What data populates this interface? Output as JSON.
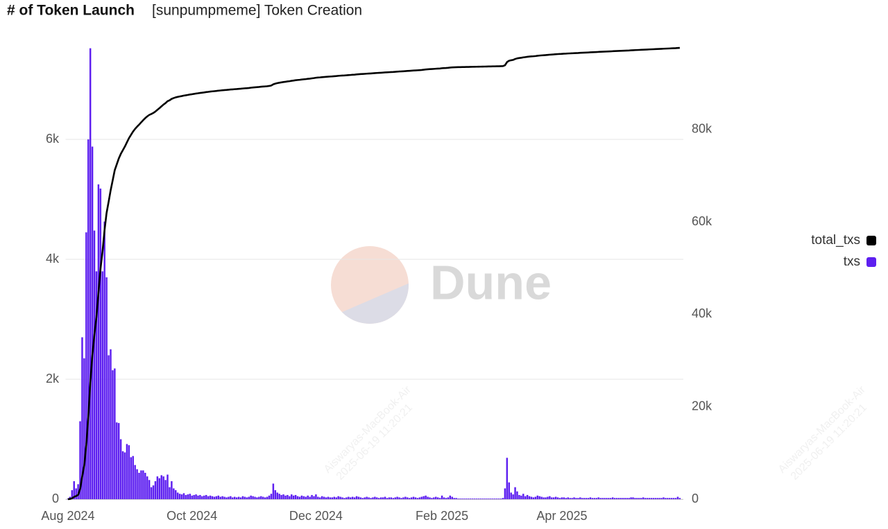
{
  "chart_data": {
    "type": "bar",
    "title": "# of Token Launch",
    "subtitle": "[sunpumpmeme] Token Creation",
    "watermark": "Dune",
    "watermark_user": "Aiswaryas-MacBook-Air",
    "watermark_time": "2025-06-19 11:20:21",
    "legend": "right",
    "grid": true,
    "categories": [
      "Aug 2024",
      null,
      null,
      null,
      null,
      null,
      null,
      null,
      null,
      null,
      null,
      null,
      null,
      null,
      null,
      null,
      null,
      null,
      null,
      null,
      null,
      null,
      null,
      null,
      null,
      null,
      null,
      null,
      null,
      null,
      null,
      null,
      null,
      null,
      null,
      null,
      null,
      null,
      null,
      null,
      null,
      null,
      null,
      null,
      null,
      null,
      null,
      null,
      null,
      null,
      null,
      null,
      null,
      null,
      null,
      null,
      null,
      null,
      null,
      null,
      null,
      "Oct 2024",
      null,
      null,
      null,
      null,
      null,
      null,
      null,
      null,
      null,
      null,
      null,
      null,
      null,
      null,
      null,
      null,
      null,
      null,
      null,
      null,
      null,
      null,
      null,
      null,
      null,
      null,
      null,
      null,
      null,
      null,
      null,
      null,
      null,
      null,
      null,
      null,
      null,
      null,
      null,
      null,
      null,
      null,
      null,
      null,
      null,
      null,
      null,
      null,
      null,
      null,
      null,
      null,
      null,
      null,
      null,
      null,
      null,
      null,
      null,
      null,
      "Dec 2024",
      null,
      null,
      null,
      null,
      null,
      null,
      null,
      null,
      null,
      null,
      null,
      null,
      null,
      null,
      null,
      null,
      null,
      null,
      null,
      null,
      null,
      null,
      null,
      null,
      null,
      null,
      null,
      null,
      null,
      null,
      null,
      null,
      null,
      null,
      null,
      null,
      null,
      null,
      null,
      null,
      null,
      null,
      null,
      null,
      null,
      null,
      null,
      null,
      null,
      null,
      null,
      null,
      null,
      null,
      null,
      null,
      null,
      null,
      null,
      null,
      null,
      "Feb 2025",
      null,
      null,
      null,
      null,
      null,
      null,
      null,
      null,
      null,
      null,
      null,
      null,
      null,
      null,
      null,
      null,
      null,
      null,
      null,
      null,
      null,
      null,
      null,
      null,
      null,
      null,
      null,
      null,
      null,
      null,
      null,
      null,
      null,
      null,
      null,
      null,
      null,
      null,
      null,
      null,
      null,
      null,
      null,
      null,
      null,
      null,
      null,
      null,
      null,
      null,
      null,
      null,
      null,
      null,
      null,
      null,
      null,
      null,
      "Apr 2025",
      null,
      null,
      null,
      null,
      null,
      null,
      null,
      null,
      null,
      null,
      null,
      null,
      null,
      null,
      null,
      null,
      null,
      null,
      null,
      null,
      null,
      null,
      null,
      null,
      null,
      null,
      null,
      null,
      null,
      null,
      null,
      null,
      null,
      null,
      null,
      null,
      null,
      null,
      null,
      null,
      null,
      null,
      null,
      null,
      null,
      null,
      null,
      null,
      null,
      null,
      null,
      null,
      null,
      null,
      null,
      null,
      null,
      null
    ],
    "ylim": [
      0,
      7550
    ],
    "yticks": [
      0,
      {
        "value": 2000,
        "label": "2k"
      },
      {
        "value": 4000,
        "label": "4k"
      },
      {
        "value": 6000,
        "label": "6k"
      }
    ],
    "y2lim": [
      0,
      98000
    ],
    "y2ticks": [
      0,
      {
        "value": 20000,
        "label": "20k"
      },
      {
        "value": 40000,
        "label": "40k"
      },
      {
        "value": 60000,
        "label": "60k"
      },
      {
        "value": 80000,
        "label": "80k"
      }
    ],
    "series": [
      {
        "name": "total_txs",
        "type": "line",
        "axis": "y2",
        "color": "#000000",
        "values": [
          10,
          50,
          200,
          500,
          680,
          930,
          2230,
          4930,
          7280,
          11730,
          17730,
          25250,
          31130,
          35610,
          39410,
          44660,
          49840,
          53640,
          58270,
          61970,
          64370,
          66870,
          69020,
          71200,
          72480,
          73750,
          74750,
          75550,
          76330,
          77250,
          78150,
          78850,
          79570,
          80140,
          80640,
          81080,
          81560,
          82040,
          82480,
          82860,
          83180,
          83380,
          83610,
          83910,
          84290,
          84640,
          85040,
          85420,
          85740,
          86150,
          86350,
          86650,
          86830,
          86980,
          87090,
          87180,
          87260,
          87360,
          87430,
          87510,
          87600,
          87660,
          87730,
          87810,
          87870,
          87940,
          87990,
          88050,
          88120,
          88170,
          88230,
          88280,
          88320,
          88370,
          88430,
          88470,
          88520,
          88560,
          88590,
          88630,
          88680,
          88710,
          88750,
          88780,
          88820,
          88850,
          88900,
          88940,
          88970,
          89010,
          89070,
          89120,
          89160,
          89190,
          89230,
          89280,
          89320,
          89350,
          89390,
          89450,
          89540,
          89800,
          89950,
          90060,
          90150,
          90220,
          90300,
          90360,
          90430,
          90480,
          90560,
          90620,
          90690,
          90740,
          90780,
          90840,
          90890,
          90930,
          90990,
          91030,
          91100,
          91150,
          91230,
          91270,
          91300,
          91350,
          91390,
          91420,
          91460,
          91490,
          91520,
          91560,
          91590,
          91640,
          91680,
          91710,
          91730,
          91760,
          91800,
          91830,
          91870,
          91900,
          91950,
          91990,
          92020,
          92040,
          92070,
          92110,
          92140,
          92160,
          92190,
          92230,
          92260,
          92280,
          92310,
          92340,
          92380,
          92400,
          92430,
          92460,
          92480,
          92510,
          92550,
          92580,
          92600,
          92630,
          92670,
          92700,
          92720,
          92750,
          92790,
          92820,
          92840,
          92870,
          92910,
          92960,
          93020,
          93060,
          93090,
          93110,
          93140,
          93180,
          93210,
          93230,
          93290,
          93320,
          93340,
          93370,
          93430,
          93470,
          93490,
          93510,
          93520,
          93530,
          93540,
          93550,
          93560,
          93570,
          93580,
          93590,
          93600,
          93610,
          93620,
          93630,
          93640,
          93650,
          93660,
          93670,
          93680,
          93690,
          93700,
          93710,
          93720,
          93730,
          93750,
          93930,
          94620,
          94900,
          95010,
          95090,
          95290,
          95420,
          95490,
          95550,
          95640,
          95690,
          95760,
          95810,
          95850,
          95880,
          95920,
          95980,
          96030,
          96070,
          96100,
          96130,
          96170,
          96220,
          96250,
          96280,
          96320,
          96350,
          96370,
          96400,
          96430,
          96450,
          96480,
          96500,
          96520,
          96550,
          96570,
          96590,
          96620,
          96640,
          96660,
          96680,
          96700,
          96730,
          96750,
          96770,
          96790,
          96820,
          96840,
          96860,
          96880,
          96900,
          96920,
          96940,
          96970,
          96990,
          97010,
          97030,
          97050,
          97070,
          97090,
          97110,
          97130,
          97160,
          97190,
          97210,
          97230,
          97250,
          97270,
          97300,
          97320,
          97340,
          97360,
          97380,
          97400,
          97420,
          97440,
          97460,
          97480,
          97510,
          97530,
          97550,
          97570,
          97590,
          97610,
          97630,
          97670,
          97690
        ]
      },
      {
        "name": "txs",
        "type": "bar",
        "color": "#5d1ff0",
        "values": [
          10,
          40,
          150,
          300,
          180,
          250,
          1300,
          2700,
          2350,
          4450,
          6000,
          7520,
          5880,
          4480,
          3800,
          5250,
          5180,
          3800,
          4630,
          3700,
          2400,
          2500,
          2150,
          2180,
          1280,
          1270,
          1000,
          800,
          780,
          920,
          900,
          700,
          720,
          570,
          500,
          440,
          480,
          480,
          440,
          380,
          320,
          200,
          230,
          300,
          380,
          350,
          400,
          380,
          320,
          410,
          200,
          300,
          180,
          150,
          110,
          90,
          80,
          100,
          70,
          80,
          90,
          60,
          70,
          80,
          60,
          70,
          50,
          60,
          70,
          50,
          60,
          50,
          40,
          50,
          60,
          40,
          50,
          40,
          30,
          40,
          50,
          30,
          40,
          30,
          40,
          30,
          50,
          40,
          30,
          40,
          60,
          50,
          40,
          30,
          40,
          50,
          40,
          30,
          40,
          60,
          90,
          260,
          150,
          110,
          90,
          70,
          80,
          60,
          70,
          50,
          80,
          60,
          70,
          50,
          40,
          60,
          50,
          40,
          60,
          40,
          70,
          50,
          80,
          40,
          30,
          50,
          40,
          30,
          40,
          30,
          30,
          40,
          30,
          50,
          40,
          30,
          20,
          30,
          40,
          30,
          40,
          30,
          50,
          40,
          30,
          20,
          30,
          40,
          30,
          20,
          30,
          40,
          30,
          20,
          30,
          30,
          40,
          20,
          30,
          30,
          20,
          30,
          40,
          30,
          20,
          30,
          40,
          30,
          20,
          30,
          40,
          30,
          20,
          30,
          40,
          50,
          60,
          40,
          30,
          20,
          30,
          40,
          30,
          20,
          60,
          30,
          20,
          30,
          60,
          40,
          20,
          20,
          10,
          10,
          10,
          10,
          10,
          10,
          10,
          10,
          10,
          10,
          10,
          10,
          10,
          10,
          10,
          10,
          10,
          10,
          10,
          10,
          10,
          10,
          20,
          180,
          690,
          280,
          110,
          80,
          200,
          130,
          70,
          60,
          90,
          50,
          70,
          50,
          40,
          30,
          40,
          60,
          50,
          40,
          30,
          30,
          40,
          50,
          30,
          30,
          40,
          30,
          20,
          30,
          30,
          20,
          30,
          20,
          20,
          30,
          20,
          20,
          30,
          20,
          20,
          20,
          20,
          30,
          20,
          20,
          20,
          30,
          20,
          20,
          20,
          20,
          20,
          20,
          30,
          20,
          20,
          20,
          20,
          20,
          20,
          20,
          20,
          30,
          30,
          20,
          20,
          20,
          20,
          30,
          20,
          20,
          20,
          20,
          20,
          20,
          20,
          20,
          20,
          30,
          20,
          20,
          20,
          20,
          20,
          20,
          40,
          20
        ]
      }
    ]
  }
}
